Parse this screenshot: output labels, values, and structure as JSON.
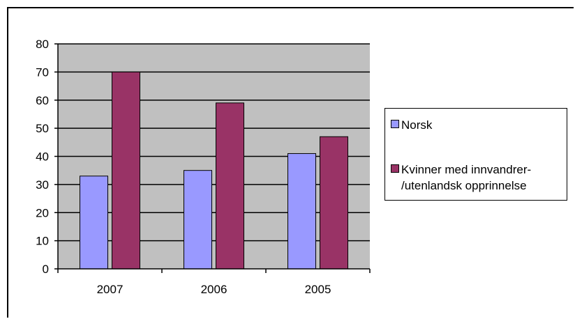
{
  "chart_data": {
    "type": "bar",
    "categories": [
      "2007",
      "2006",
      "2005"
    ],
    "series": [
      {
        "name": "Norsk",
        "values": [
          33,
          35,
          41
        ],
        "color": "#9999ff"
      },
      {
        "name": "Kvinner med innvandrer-/utenlandsk opprinnelse",
        "values": [
          70,
          59,
          47
        ],
        "color": "#993366"
      }
    ],
    "ylim": [
      0,
      80
    ],
    "yticks": [
      0,
      10,
      20,
      30,
      40,
      50,
      60,
      70,
      80
    ],
    "grid": true,
    "plot_background": "#c0c0c0",
    "legend_position": "right",
    "legend": {
      "items": [
        {
          "label": "Norsk"
        },
        {
          "label_lines": [
            "Kvinner med innvandrer-",
            "/utenlandsk opprinnelse"
          ]
        }
      ]
    }
  }
}
